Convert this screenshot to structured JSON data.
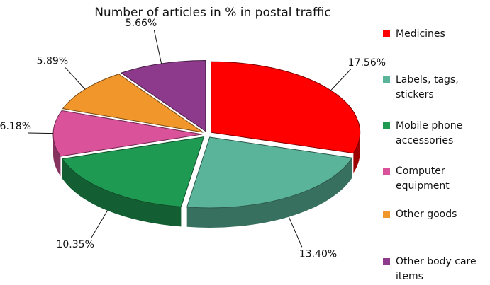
{
  "chart_data": {
    "type": "pie",
    "title": "Number of articles in % in postal traffic",
    "categories": [
      "Medicines",
      "Labels, tags, stickers",
      "Mobile phone accessories",
      "Computer equipment",
      "Other goods",
      "Other body care items"
    ],
    "values": [
      17.56,
      13.4,
      10.35,
      6.18,
      5.89,
      5.66
    ],
    "value_labels": [
      "17.56%",
      "13.40%",
      "10.35%",
      "6.18%",
      "5.89%",
      "5.66%"
    ],
    "colors": [
      "#ff0000",
      "#5ab49a",
      "#1f9a52",
      "#d9529a",
      "#f0962a",
      "#8e3a8c"
    ]
  }
}
